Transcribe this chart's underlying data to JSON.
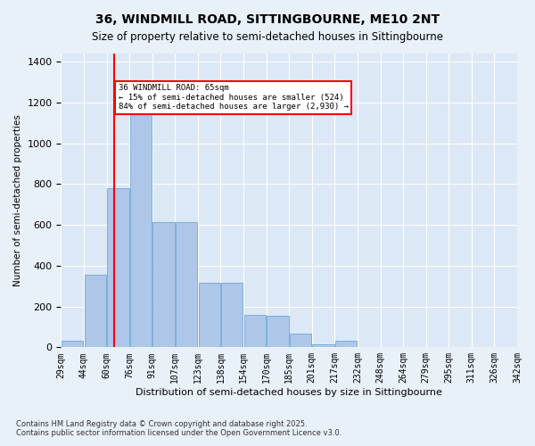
{
  "title": "36, WINDMILL ROAD, SITTINGBOURNE, ME10 2NT",
  "subtitle": "Size of property relative to semi-detached houses in Sittingbourne",
  "xlabel": "Distribution of semi-detached houses by size in Sittingbourne",
  "ylabel": "Number of semi-detached properties",
  "footnote": "Contains HM Land Registry data © Crown copyright and database right 2025.\nContains public sector information licensed under the Open Government Licence v3.0.",
  "bins": [
    "29sqm",
    "44sqm",
    "60sqm",
    "76sqm",
    "91sqm",
    "107sqm",
    "123sqm",
    "138sqm",
    "154sqm",
    "170sqm",
    "185sqm",
    "201sqm",
    "217sqm",
    "232sqm",
    "248sqm",
    "264sqm",
    "279sqm",
    "295sqm",
    "311sqm",
    "326sqm",
    "342sqm"
  ],
  "bar_values": [
    30,
    355,
    780,
    1145,
    615,
    615,
    315,
    315,
    160,
    155,
    65,
    15,
    30,
    0,
    0,
    0,
    0,
    0,
    0,
    0
  ],
  "bar_color": "#aec6e8",
  "bar_edge_color": "#5a9fd4",
  "pct_smaller": 15,
  "pct_larger": 84,
  "count_smaller": 524,
  "count_larger": 2930,
  "ylim": [
    0,
    1440
  ],
  "bg_color": "#e8f0f8",
  "plot_bg_color": "#dce8f5"
}
